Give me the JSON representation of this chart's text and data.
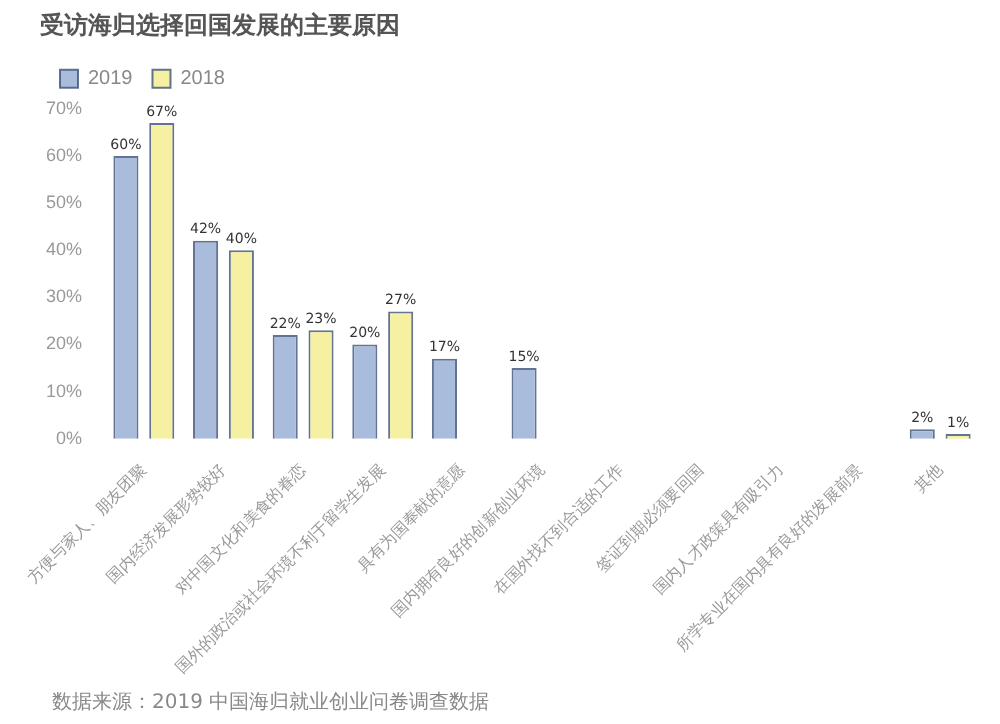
{
  "chart_data": {
    "type": "bar",
    "title": "受访海归选择回国发展的主要原因",
    "categories": [
      "方便与家人、朋友团聚",
      "国内经济发展形势较好",
      "对中国文化和美食的眷恋",
      "国外的政治或社会环境不利于留学生发展",
      "具有为国奉献的意愿",
      "国内拥有良好的创新创业环境",
      "在国外找不到合适的工作",
      "签证到期必须要回国",
      "国内人才政策具有吸引力",
      "所学专业在国内具有良好的发展前景",
      "其他"
    ],
    "series": [
      {
        "name": "2019",
        "color": "#a9bcdc",
        "values": [
          60,
          42,
          22,
          20,
          17,
          15,
          null,
          null,
          null,
          null,
          2
        ],
        "value_labels": [
          "60%",
          "42%",
          "22%",
          "20%",
          "17%",
          "15%",
          null,
          null,
          null,
          null,
          "2%"
        ]
      },
      {
        "name": "2018",
        "color": "#f6f0a2",
        "values": [
          67,
          40,
          23,
          27,
          null,
          null,
          null,
          null,
          null,
          null,
          1
        ],
        "value_labels": [
          "67%",
          "40%",
          "23%",
          "27%",
          null,
          null,
          null,
          null,
          null,
          null,
          "1%"
        ]
      }
    ],
    "ylim": [
      0,
      70
    ],
    "yticks": [
      {
        "value": 0,
        "label": "0%"
      },
      {
        "value": 10,
        "label": "10%"
      },
      {
        "value": 20,
        "label": "20%"
      },
      {
        "value": 30,
        "label": "30%"
      },
      {
        "value": 40,
        "label": "40%"
      },
      {
        "value": 50,
        "label": "50%"
      },
      {
        "value": 60,
        "label": "60%"
      },
      {
        "value": 70,
        "label": "70%"
      }
    ],
    "grid": false,
    "legend": "top left",
    "annotations": [
      "数据来源：2019 中国海归就业创业问卷调查数据"
    ]
  }
}
